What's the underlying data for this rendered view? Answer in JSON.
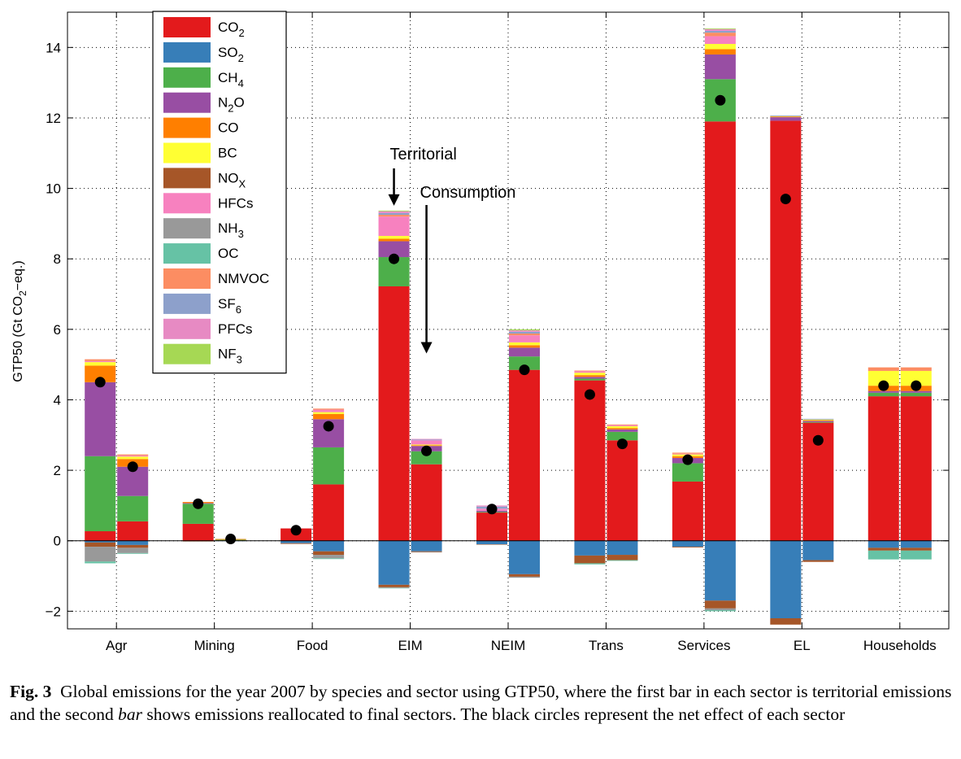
{
  "caption": {
    "label": "Fig. 3",
    "text_before_italic": "Global emissions for the year 2007 by species and sector using GTP50, where the first bar in each sector is territorial emissions and the second ",
    "italic": "bar",
    "text_after_italic": " shows emissions reallocated to final sectors. The black circles represent the net effect of each sector"
  },
  "chart_data": {
    "type": "bar",
    "stacked": true,
    "ylabel": "GTP50 (Gt CO2−eq.)",
    "ylim": [
      -2.5,
      15
    ],
    "yticks": [
      -2,
      0,
      2,
      4,
      6,
      8,
      10,
      12,
      14
    ],
    "grid": true,
    "legend_position": "top-left",
    "categories": [
      "Agr",
      "Mining",
      "Food",
      "EIM",
      "NEIM",
      "Trans",
      "Services",
      "EL",
      "Households"
    ],
    "bar_groups": [
      "Territorial",
      "Consumption"
    ],
    "species": [
      {
        "name": "CO2",
        "base": "CO",
        "sub": "2",
        "color": "#e31a1c"
      },
      {
        "name": "SO2",
        "base": "SO",
        "sub": "2",
        "color": "#377eb8"
      },
      {
        "name": "CH4",
        "base": "CH",
        "sub": "4",
        "color": "#4daf4a"
      },
      {
        "name": "N2O",
        "base": "N",
        "sub": "2",
        "tail": "O",
        "color": "#984ea3"
      },
      {
        "name": "CO",
        "base": "CO",
        "sub": "",
        "color": "#ff7f00"
      },
      {
        "name": "BC",
        "base": "BC",
        "sub": "",
        "color": "#ffff33"
      },
      {
        "name": "NOX",
        "base": "NO",
        "sub": "X",
        "color": "#a65628"
      },
      {
        "name": "HFCs",
        "base": "HFCs",
        "sub": "",
        "color": "#f781bf"
      },
      {
        "name": "NH3",
        "base": "NH",
        "sub": "3",
        "color": "#999999"
      },
      {
        "name": "OC",
        "base": "OC",
        "sub": "",
        "color": "#66c2a5"
      },
      {
        "name": "NMVOC",
        "base": "NMVOC",
        "sub": "",
        "color": "#fc8d62"
      },
      {
        "name": "SF6",
        "base": "SF",
        "sub": "6",
        "color": "#8da0cb"
      },
      {
        "name": "PFCs",
        "base": "PFCs",
        "sub": "",
        "color": "#e78ac3"
      },
      {
        "name": "NF3",
        "base": "NF",
        "sub": "3",
        "color": "#a6d854"
      }
    ],
    "bars": [
      {
        "sector": "Agr",
        "kind": "Territorial",
        "net": 4.5,
        "positive": {
          "CO2": 0.27,
          "CH4": 2.13,
          "N2O": 2.1,
          "CO": 0.47,
          "BC": 0.1,
          "NMVOC": 0.05,
          "HFCs": 0.03
        },
        "negative": {
          "SO2": 0.05,
          "NOX": 0.12,
          "NH3": 0.42,
          "OC": 0.05
        }
      },
      {
        "sector": "Agr",
        "kind": "Consumption",
        "net": 2.1,
        "positive": {
          "CO2": 0.55,
          "CH4": 0.72,
          "N2O": 0.83,
          "CO": 0.22,
          "BC": 0.07,
          "NMVOC": 0.03,
          "HFCs": 0.03
        },
        "negative": {
          "SO2": 0.12,
          "NOX": 0.08,
          "NH3": 0.15,
          "OC": 0.02
        }
      },
      {
        "sector": "Mining",
        "kind": "Territorial",
        "net": 1.05,
        "positive": {
          "CO2": 0.48,
          "CH4": 0.57,
          "N2O": 0.02,
          "CO": 0.03
        },
        "negative": {
          "SO2": 0.01,
          "NOX": 0.01
        }
      },
      {
        "sector": "Mining",
        "kind": "Consumption",
        "net": 0.05,
        "positive": {
          "CO2": 0.01,
          "CH4": 0.02,
          "CO": 0.02
        },
        "negative": {
          "SO2": 0.01
        }
      },
      {
        "sector": "Food",
        "kind": "Territorial",
        "net": 0.3,
        "positive": {
          "CO2": 0.35
        },
        "negative": {
          "SO2": 0.07,
          "NOX": 0.02
        }
      },
      {
        "sector": "Food",
        "kind": "Consumption",
        "net": 3.25,
        "positive": {
          "CO2": 1.6,
          "CH4": 1.05,
          "N2O": 0.8,
          "CO": 0.15,
          "BC": 0.05,
          "NMVOC": 0.03,
          "HFCs": 0.07
        },
        "negative": {
          "SO2": 0.3,
          "NOX": 0.1,
          "NH3": 0.1,
          "OC": 0.02
        }
      },
      {
        "sector": "EIM",
        "kind": "Territorial",
        "net": 8.0,
        "positive": {
          "CO2": 7.22,
          "CH4": 0.83,
          "N2O": 0.45,
          "CO": 0.07,
          "BC": 0.08,
          "NMVOC": 0.05,
          "HFCs": 0.55,
          "SF6": 0.05,
          "PFCs": 0.05,
          "NF3": 0.02
        },
        "negative": {
          "SO2": 1.25,
          "NOX": 0.07,
          "NH3": 0.02,
          "OC": 0.01
        }
      },
      {
        "sector": "EIM",
        "kind": "Consumption",
        "net": 2.55,
        "positive": {
          "CO2": 2.17,
          "CH4": 0.37,
          "N2O": 0.15,
          "CO": 0.02,
          "BC": 0.02,
          "HFCs": 0.12,
          "SF6": 0.02,
          "PFCs": 0.02
        },
        "negative": {
          "SO2": 0.3,
          "NOX": 0.02,
          "NH3": 0.01
        }
      },
      {
        "sector": "NEIM",
        "kind": "Territorial",
        "net": 0.9,
        "positive": {
          "CO2": 0.8,
          "CH4": 0.02,
          "N2O": 0.03,
          "HFCs": 0.06,
          "SF6": 0.06,
          "PFCs": 0.03
        },
        "negative": {
          "SO2": 0.1,
          "NOX": 0.01
        }
      },
      {
        "sector": "NEIM",
        "kind": "Consumption",
        "net": 4.85,
        "positive": {
          "CO2": 4.85,
          "CH4": 0.38,
          "N2O": 0.25,
          "CO": 0.07,
          "BC": 0.08,
          "NMVOC": 0.05,
          "HFCs": 0.2,
          "SF6": 0.05,
          "PFCs": 0.04,
          "NF3": 0.03
        },
        "negative": {
          "SO2": 0.95,
          "NOX": 0.07,
          "NH3": 0.03
        }
      },
      {
        "sector": "Trans",
        "kind": "Territorial",
        "net": 4.15,
        "positive": {
          "CO2": 4.55,
          "CH4": 0.05,
          "N2O": 0.05,
          "CO": 0.05,
          "BC": 0.07,
          "NMVOC": 0.02,
          "HFCs": 0.04
        },
        "negative": {
          "SO2": 0.42,
          "NOX": 0.22,
          "OC": 0.03
        }
      },
      {
        "sector": "Trans",
        "kind": "Consumption",
        "net": 2.75,
        "positive": {
          "CO2": 2.85,
          "CH4": 0.24,
          "N2O": 0.07,
          "CO": 0.04,
          "BC": 0.05,
          "NMVOC": 0.02,
          "HFCs": 0.03
        },
        "negative": {
          "SO2": 0.4,
          "NOX": 0.15,
          "OC": 0.02
        }
      },
      {
        "sector": "Services",
        "kind": "Territorial",
        "net": 2.3,
        "positive": {
          "CO2": 1.68,
          "CH4": 0.52,
          "N2O": 0.15,
          "CO": 0.05,
          "BC": 0.05,
          "NMVOC": 0.03,
          "HFCs": 0.02
        },
        "negative": {
          "SO2": 0.17,
          "NOX": 0.02
        }
      },
      {
        "sector": "Services",
        "kind": "Consumption",
        "net": 12.5,
        "positive": {
          "CO2": 11.9,
          "CH4": 1.2,
          "N2O": 0.7,
          "CO": 0.15,
          "BC": 0.15,
          "NMVOC": 0.1,
          "HFCs": 0.22,
          "SF6": 0.05,
          "PFCs": 0.05,
          "NF3": 0.02
        },
        "negative": {
          "SO2": 1.7,
          "NOX": 0.22,
          "NH3": 0.05,
          "OC": 0.03
        }
      },
      {
        "sector": "EL",
        "kind": "Territorial",
        "net": 9.7,
        "positive": {
          "CO2": 11.92,
          "N2O": 0.1,
          "CO": 0.02,
          "BC": 0.01,
          "SF6": 0.02
        },
        "negative": {
          "SO2": 2.2,
          "NOX": 0.18
        }
      },
      {
        "sector": "EL",
        "kind": "Consumption",
        "net": 2.85,
        "positive": {
          "CO2": 3.35,
          "CH4": 0.02,
          "N2O": 0.03,
          "CO": 0.02,
          "BC": 0.02,
          "SF6": 0.02
        },
        "negative": {
          "SO2": 0.55,
          "NOX": 0.05
        }
      },
      {
        "sector": "Households",
        "kind": "Territorial",
        "net": 4.4,
        "positive": {
          "CO2": 4.1,
          "CH4": 0.1,
          "N2O": 0.05,
          "CO": 0.15,
          "BC": 0.42,
          "NMVOC": 0.1
        },
        "negative": {
          "SO2": 0.2,
          "NOX": 0.08,
          "OC": 0.25
        }
      },
      {
        "sector": "Households",
        "kind": "Consumption",
        "net": 4.4,
        "positive": {
          "CO2": 4.1,
          "CH4": 0.1,
          "N2O": 0.05,
          "CO": 0.15,
          "BC": 0.42,
          "NMVOC": 0.1
        },
        "negative": {
          "SO2": 0.2,
          "NOX": 0.08,
          "OC": 0.25
        }
      }
    ],
    "annotations": [
      {
        "text": "Territorial",
        "points_to": "EIM Territorial"
      },
      {
        "text": "Consumption",
        "points_to": "EIM Consumption"
      }
    ]
  }
}
